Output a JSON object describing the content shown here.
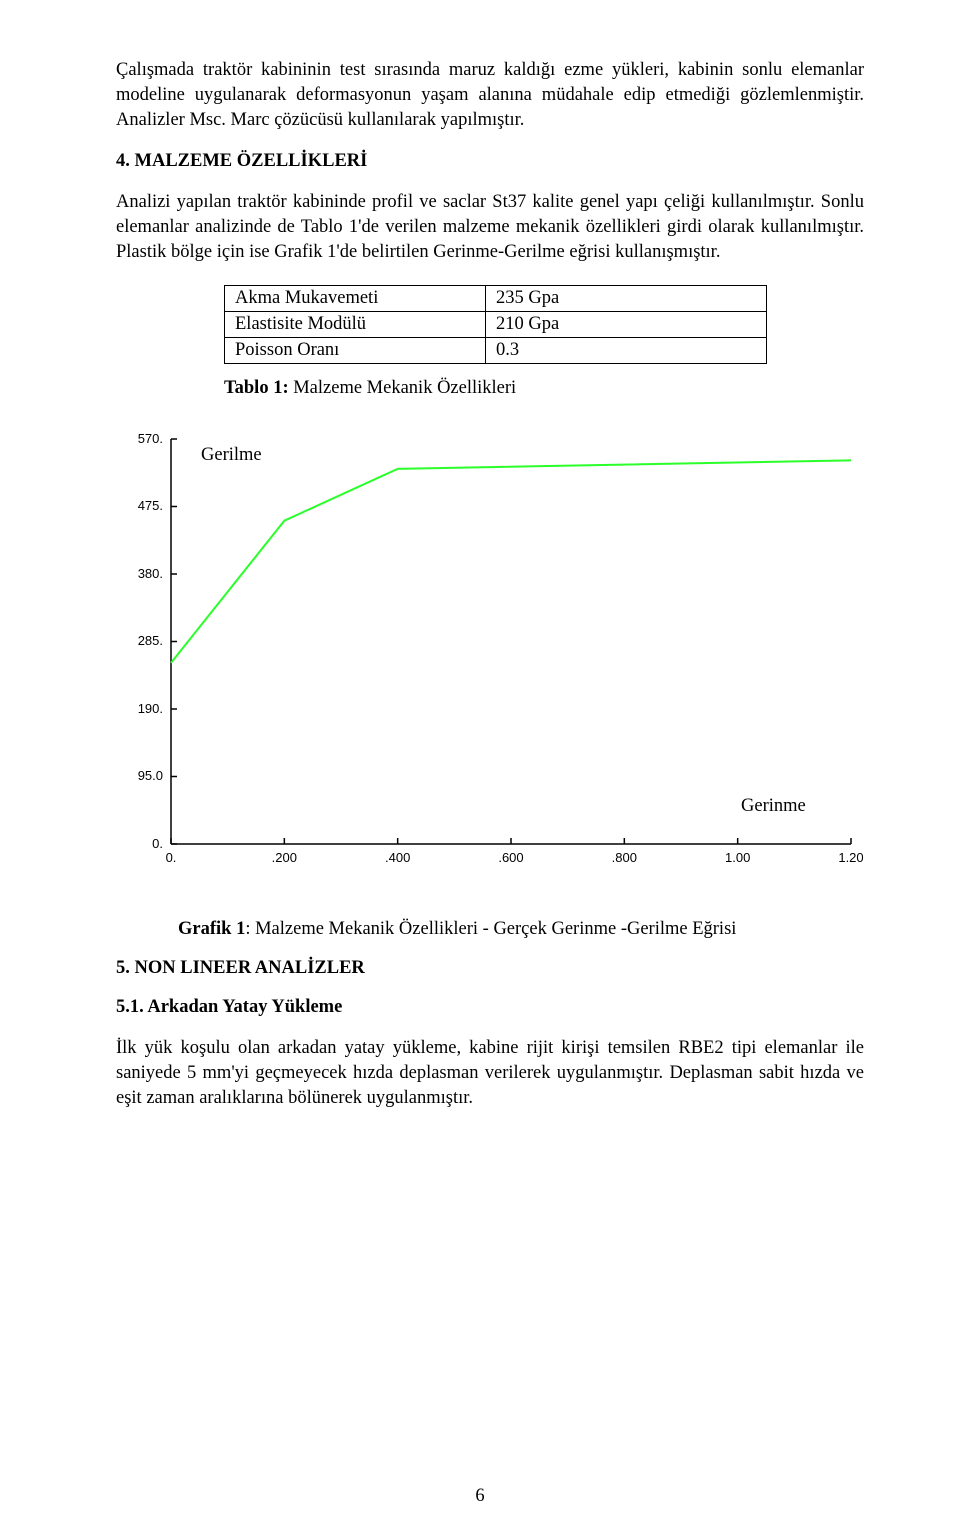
{
  "paragraphs": {
    "intro": "Çalışmada traktör kabininin test sırasında maruz kaldığı ezme yükleri, kabinin sonlu elemanlar modeline uygulanarak deformasyonun yaşam alanına müdahale edip etmediği gözlemlenmiştir. Analizler Msc. Marc çözücüsü kullanılarak yapılmıştır.",
    "materials_1": "Analizi yapılan traktör kabininde profil ve saclar St37 kalite genel yapı çeliği kullanılmıştır. Sonlu elemanlar analizinde de Tablo 1'de verilen malzeme mekanik özellikleri girdi olarak kullanılmıştır. Plastik bölge için ise Grafik 1'de belirtilen Gerinme-Gerilme eğrisi kullanışmıştır.",
    "rear_load": "İlk yük koşulu olan arkadan yatay yükleme, kabine rijit kirişi temsilen RBE2 tipi elemanlar ile saniyede 5 mm'yi geçmeyecek hızda deplasman verilerek uygulanmıştır. Deplasman sabit hızda ve eşit zaman aralıklarına bölünerek uygulanmıştır."
  },
  "headings": {
    "sec4": "4. MALZEME ÖZELLİKLERİ",
    "sec5": "5. NON LINEER ANALİZLER",
    "sec5_1": "5.1. Arkadan Yatay Yükleme"
  },
  "prop_table": {
    "columns": [
      "label",
      "value"
    ],
    "rows": [
      {
        "label": "Akma Mukavemeti",
        "value": "235 Gpa"
      },
      {
        "label": "Elastisite Modülü",
        "value": "210 Gpa"
      },
      {
        "label": "Poisson Oranı",
        "value": "0.3"
      }
    ],
    "caption_bold": "Tablo 1:",
    "caption_rest": " Malzeme Mekanik Özellikleri"
  },
  "chart": {
    "type": "line",
    "line_color": "#2aff2a",
    "line_width": 2,
    "background_color": "#ffffff",
    "axis_color": "#000000",
    "xlim": [
      0.0,
      1.2
    ],
    "ylim": [
      0.0,
      570.0
    ],
    "xticks": {
      "positions": [
        0.0,
        0.2,
        0.4,
        0.6,
        0.8,
        1.0,
        1.2
      ],
      "labels": [
        "0.",
        ".200",
        ".400",
        ".600",
        ".800",
        "1.00",
        "1.20"
      ]
    },
    "yticks": {
      "positions": [
        0.0,
        95.0,
        190.0,
        285.0,
        380.0,
        475.0,
        570.0
      ],
      "labels": [
        "0.",
        "95.0",
        "190.",
        "285.",
        "380.",
        "475.",
        "570."
      ]
    },
    "series": {
      "x": [
        0.0,
        0.2,
        0.4,
        1.2
      ],
      "y": [
        255.0,
        455.0,
        528.0,
        540.0
      ]
    },
    "label_y": "Gerilme",
    "label_x": "Gerinme",
    "caption_bold": "Grafik 1",
    "caption_rest": ": Malzeme Mekanik Özellikleri - Gerçek Gerinme -Gerilme Eğrisi",
    "axis_fontsize": 13,
    "label_fontsize": 18.5,
    "font_family_ticks": "Arial"
  },
  "page_number": "6"
}
